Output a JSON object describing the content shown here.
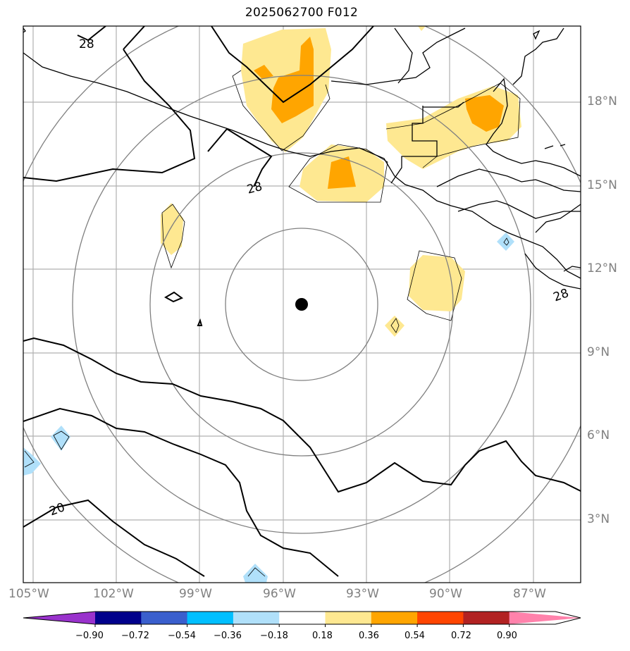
{
  "title": "2025062700 F012",
  "lat_labels": [
    "18°N",
    "15°N",
    "12°N",
    "9°N",
    "6°N",
    "3°N"
  ],
  "lon_labels": [
    "105°W",
    "102°W",
    "99°W",
    "96°W",
    "93°W",
    "90°W",
    "87°W"
  ],
  "contour_labels": [
    "28",
    "28",
    "28",
    "20"
  ],
  "colorbar": {
    "colors": [
      "#9932cc",
      "#00008b",
      "#3a5fcd",
      "#00bfff",
      "#b0e0fa",
      "#ffffff",
      "#fee891",
      "#ffa500",
      "#ff4500",
      "#b22222",
      "#ff82ab"
    ],
    "tick_labels": [
      "−0.90",
      "−0.72",
      "−0.54",
      "−0.36",
      "−0.18",
      "0.18",
      "0.36",
      "0.54",
      "0.72",
      "0.90"
    ]
  },
  "map_data": {
    "center_marker": {
      "lon": -95.6,
      "lat": 10.7
    },
    "fill_levels": [
      "0.18",
      "0.36",
      "0.54"
    ],
    "contour_values": [
      20,
      28
    ]
  },
  "colors": {
    "grid": "#b0b0b0",
    "range_rings": "#808080",
    "coast": "#000000",
    "fill_light_yellow": "#fee891",
    "fill_orange": "#ffa500",
    "fill_light_blue": "#b0e0fa"
  }
}
